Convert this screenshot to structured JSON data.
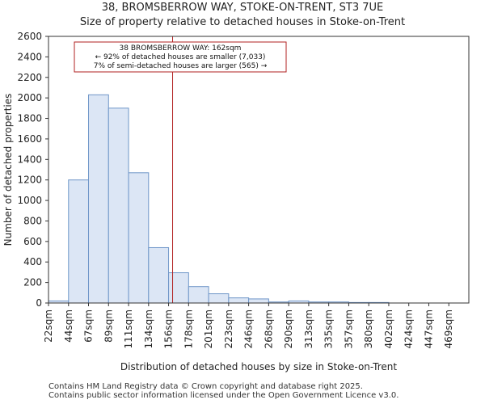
{
  "title": "38, BROMSBERROW WAY, STOKE-ON-TRENT, ST3 7UE",
  "subtitle": "Size of property relative to detached houses in Stoke-on-Trent",
  "footer": {
    "line1": "Contains HM Land Registry data © Crown copyright and database right 2025.",
    "line2": "Contains public sector information licensed under the Open Government Licence v3.0."
  },
  "colors": {
    "bar_fill": "#dce6f5",
    "bar_stroke": "#6f96c8",
    "marker": "#b22222",
    "axis": "#333333"
  },
  "chart_data": {
    "type": "bar",
    "xlabel": "Distribution of detached houses by size in Stoke-on-Trent",
    "ylabel": "Number of detached properties",
    "categories": [
      "22sqm",
      "44sqm",
      "67sqm",
      "89sqm",
      "111sqm",
      "134sqm",
      "156sqm",
      "178sqm",
      "201sqm",
      "223sqm",
      "246sqm",
      "268sqm",
      "290sqm",
      "313sqm",
      "335sqm",
      "357sqm",
      "380sqm",
      "402sqm",
      "424sqm",
      "447sqm",
      "469sqm"
    ],
    "values": [
      20,
      1200,
      2030,
      1900,
      1270,
      540,
      295,
      160,
      90,
      50,
      40,
      10,
      20,
      10,
      10,
      5,
      5,
      0,
      0,
      0,
      0
    ],
    "ylim": [
      0,
      2600
    ],
    "yticks": [
      0,
      200,
      400,
      600,
      800,
      1000,
      1200,
      1400,
      1600,
      1800,
      2000,
      2200,
      2400,
      2600
    ],
    "marker_bin": 6.2,
    "annotation": {
      "line1": "38 BROMSBERROW WAY: 162sqm",
      "line2": "← 92% of detached houses are smaller (7,033)",
      "line3": "7% of semi-detached houses are larger (565) →"
    }
  }
}
